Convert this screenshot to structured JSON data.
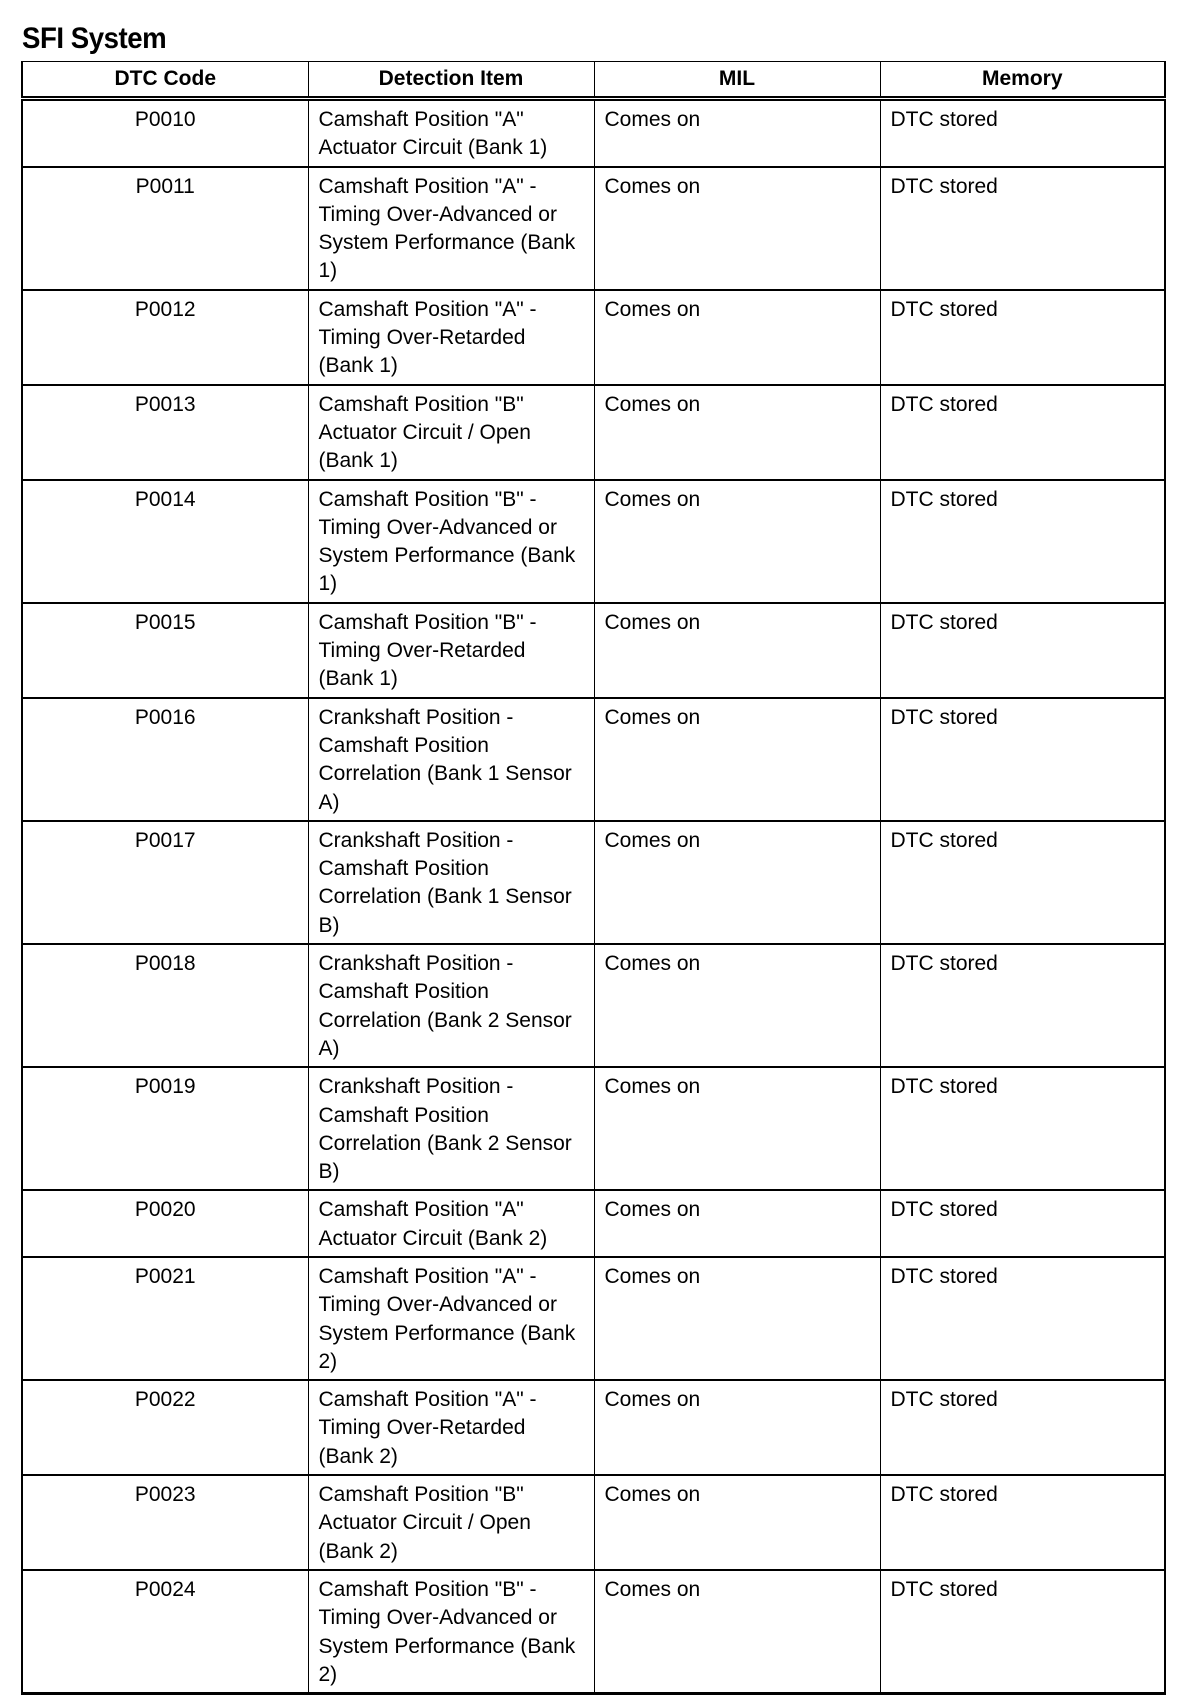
{
  "title": "SFI System",
  "columns": [
    "DTC Code",
    "Detection Item",
    "MIL",
    "Memory"
  ],
  "rows": [
    {
      "code": "P0010",
      "item": "Camshaft Position \"A\" Actuator Circuit (Bank 1)",
      "mil": "Comes on",
      "memory": "DTC stored"
    },
    {
      "code": "P0011",
      "item": "Camshaft Position \"A\" - Timing Over-Advanced or System Performance (Bank 1)",
      "mil": "Comes on",
      "memory": "DTC stored"
    },
    {
      "code": "P0012",
      "item": "Camshaft Position \"A\" - Timing Over-Retarded (Bank 1)",
      "mil": "Comes on",
      "memory": "DTC stored"
    },
    {
      "code": "P0013",
      "item": "Camshaft Position \"B\" Actuator Circuit / Open (Bank 1)",
      "mil": "Comes on",
      "memory": "DTC stored"
    },
    {
      "code": "P0014",
      "item": "Camshaft Position \"B\" - Timing Over-Advanced or System Performance (Bank 1)",
      "mil": "Comes on",
      "memory": "DTC stored"
    },
    {
      "code": "P0015",
      "item": "Camshaft Position \"B\"  - Timing Over-Retarded (Bank 1)",
      "mil": "Comes on",
      "memory": "DTC stored"
    },
    {
      "code": "P0016",
      "item": "Crankshaft Position - Camshaft Position Correlation (Bank 1 Sensor A)",
      "mil": "Comes on",
      "memory": "DTC stored"
    },
    {
      "code": "P0017",
      "item": "Crankshaft Position - Camshaft Position Correlation  (Bank 1 Sensor B)",
      "mil": "Comes on",
      "memory": "DTC stored"
    },
    {
      "code": "P0018",
      "item": "Crankshaft Position - Camshaft Position Correlation (Bank 2 Sensor A)",
      "mil": "Comes on",
      "memory": "DTC stored"
    },
    {
      "code": "P0019",
      "item": "Crankshaft Position - Camshaft Position Correlation  (Bank 2 Sensor B)",
      "mil": "Comes on",
      "memory": "DTC stored"
    },
    {
      "code": "P0020",
      "item": "Camshaft Position \"A\" Actuator Circuit (Bank 2)",
      "mil": "Comes on",
      "memory": "DTC stored"
    },
    {
      "code": "P0021",
      "item": "Camshaft Position \"A\" - Timing Over-Advanced or System Performance (Bank 2)",
      "mil": "Comes on",
      "memory": "DTC stored"
    },
    {
      "code": "P0022",
      "item": "Camshaft Position \"A\" - Timing Over-Retarded (Bank 2)",
      "mil": "Comes on",
      "memory": "DTC stored"
    },
    {
      "code": "P0023",
      "item": "Camshaft Position \"B\" Actuator Circuit / Open (Bank 2)",
      "mil": "Comes on",
      "memory": "DTC stored"
    },
    {
      "code": "P0024",
      "item": "Camshaft Position \"B\" - Timing Over-Advanced or System Performance (Bank 2)",
      "mil": "Comes on",
      "memory": "DTC stored"
    }
  ]
}
